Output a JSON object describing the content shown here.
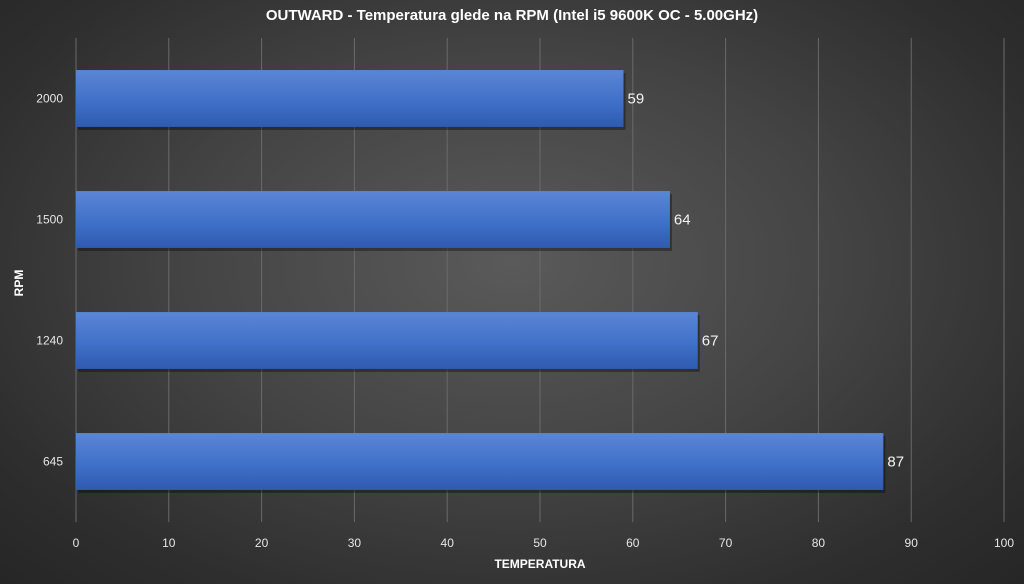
{
  "chart_data": {
    "type": "bar",
    "orientation": "horizontal",
    "title": "OUTWARD - Temperatura  glede na RPM (Intel i5 9600K OC - 5.00GHz)",
    "xlabel": "TEMPERATURA",
    "ylabel": "RPM",
    "categories": [
      "2000",
      "1500",
      "1240",
      "645"
    ],
    "values": [
      59,
      64,
      67,
      87
    ],
    "xlim": [
      0,
      100
    ],
    "x_ticks": [
      0,
      10,
      20,
      30,
      40,
      50,
      60,
      70,
      80,
      90,
      100
    ],
    "grid": true,
    "data_labels": true,
    "legend": "none",
    "bar_color": "#4472c4",
    "background_color": "#404040"
  }
}
